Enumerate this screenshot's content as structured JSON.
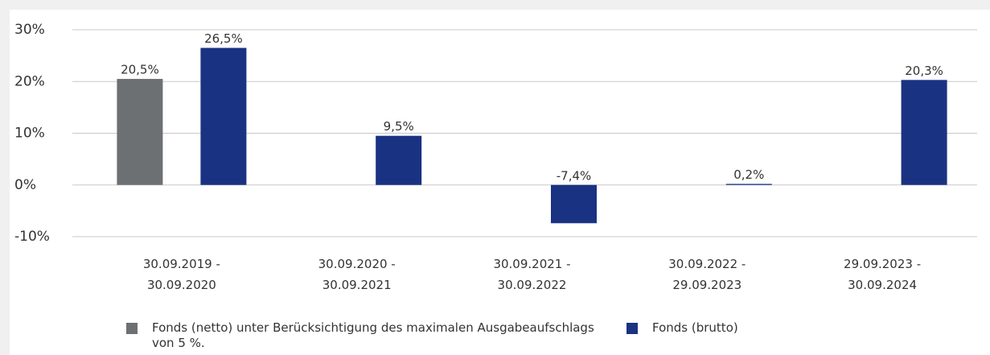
{
  "chart_data": {
    "type": "bar",
    "categories": [
      "30.09.2019 -\n30.09.2020",
      "30.09.2020 -\n30.09.2021",
      "30.09.2021 -\n30.09.2022",
      "30.09.2022 -\n29.09.2023",
      "29.09.2023 -\n30.09.2024"
    ],
    "series": [
      {
        "name": "Fonds (netto) unter Berücksichtigung des maximalen Ausgabeaufschlags von 5 %.",
        "color": "#6d7073",
        "values": [
          20.5,
          null,
          null,
          null,
          null
        ],
        "value_labels": [
          "20,5%",
          null,
          null,
          null,
          null
        ]
      },
      {
        "name": "Fonds (brutto)",
        "color": "#1a3282",
        "values": [
          26.5,
          9.5,
          -7.4,
          0.2,
          20.3
        ],
        "value_labels": [
          "26,5%",
          "9,5%",
          "-7,4%",
          "0,2%",
          "20,3%"
        ]
      }
    ],
    "ylim": [
      -10,
      30
    ],
    "yticks": [
      {
        "value": -10,
        "label": "-10%"
      },
      {
        "value": 0,
        "label": "0%"
      },
      {
        "value": 10,
        "label": "10%"
      },
      {
        "value": 20,
        "label": "20%"
      },
      {
        "value": 30,
        "label": "30%"
      }
    ],
    "grid": true
  }
}
